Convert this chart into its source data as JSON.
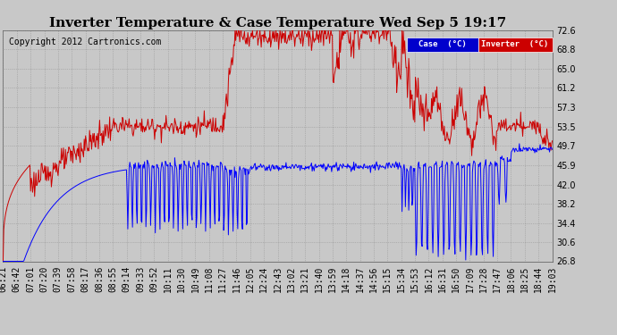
{
  "title": "Inverter Temperature & Case Temperature Wed Sep 5 19:17",
  "copyright": "Copyright 2012 Cartronics.com",
  "legend_case_label": "Case  (°C)",
  "legend_inverter_label": "Inverter  (°C)",
  "case_color": "#0000ff",
  "inverter_color": "#cc0000",
  "bg_color": "#c8c8c8",
  "plot_bg_color": "#c8c8c8",
  "y_ticks": [
    26.8,
    30.6,
    34.4,
    38.2,
    42.0,
    45.9,
    49.7,
    53.5,
    57.3,
    61.2,
    65.0,
    68.8,
    72.6
  ],
  "x_tick_labels": [
    "06:21",
    "06:42",
    "07:01",
    "07:20",
    "07:39",
    "07:58",
    "08:17",
    "08:36",
    "08:55",
    "09:14",
    "09:33",
    "09:52",
    "10:11",
    "10:30",
    "10:49",
    "11:08",
    "11:27",
    "11:46",
    "12:05",
    "12:24",
    "12:43",
    "13:02",
    "13:21",
    "13:40",
    "13:59",
    "14:18",
    "14:37",
    "14:56",
    "15:15",
    "15:34",
    "15:53",
    "16:12",
    "16:31",
    "16:50",
    "17:09",
    "17:28",
    "17:47",
    "18:06",
    "18:25",
    "18:44",
    "19:03"
  ],
  "ymin": 26.8,
  "ymax": 72.6,
  "title_fontsize": 11,
  "tick_fontsize": 7,
  "copyright_fontsize": 7,
  "grid_color": "#888888",
  "grid_style": ":",
  "grid_alpha": 0.8
}
